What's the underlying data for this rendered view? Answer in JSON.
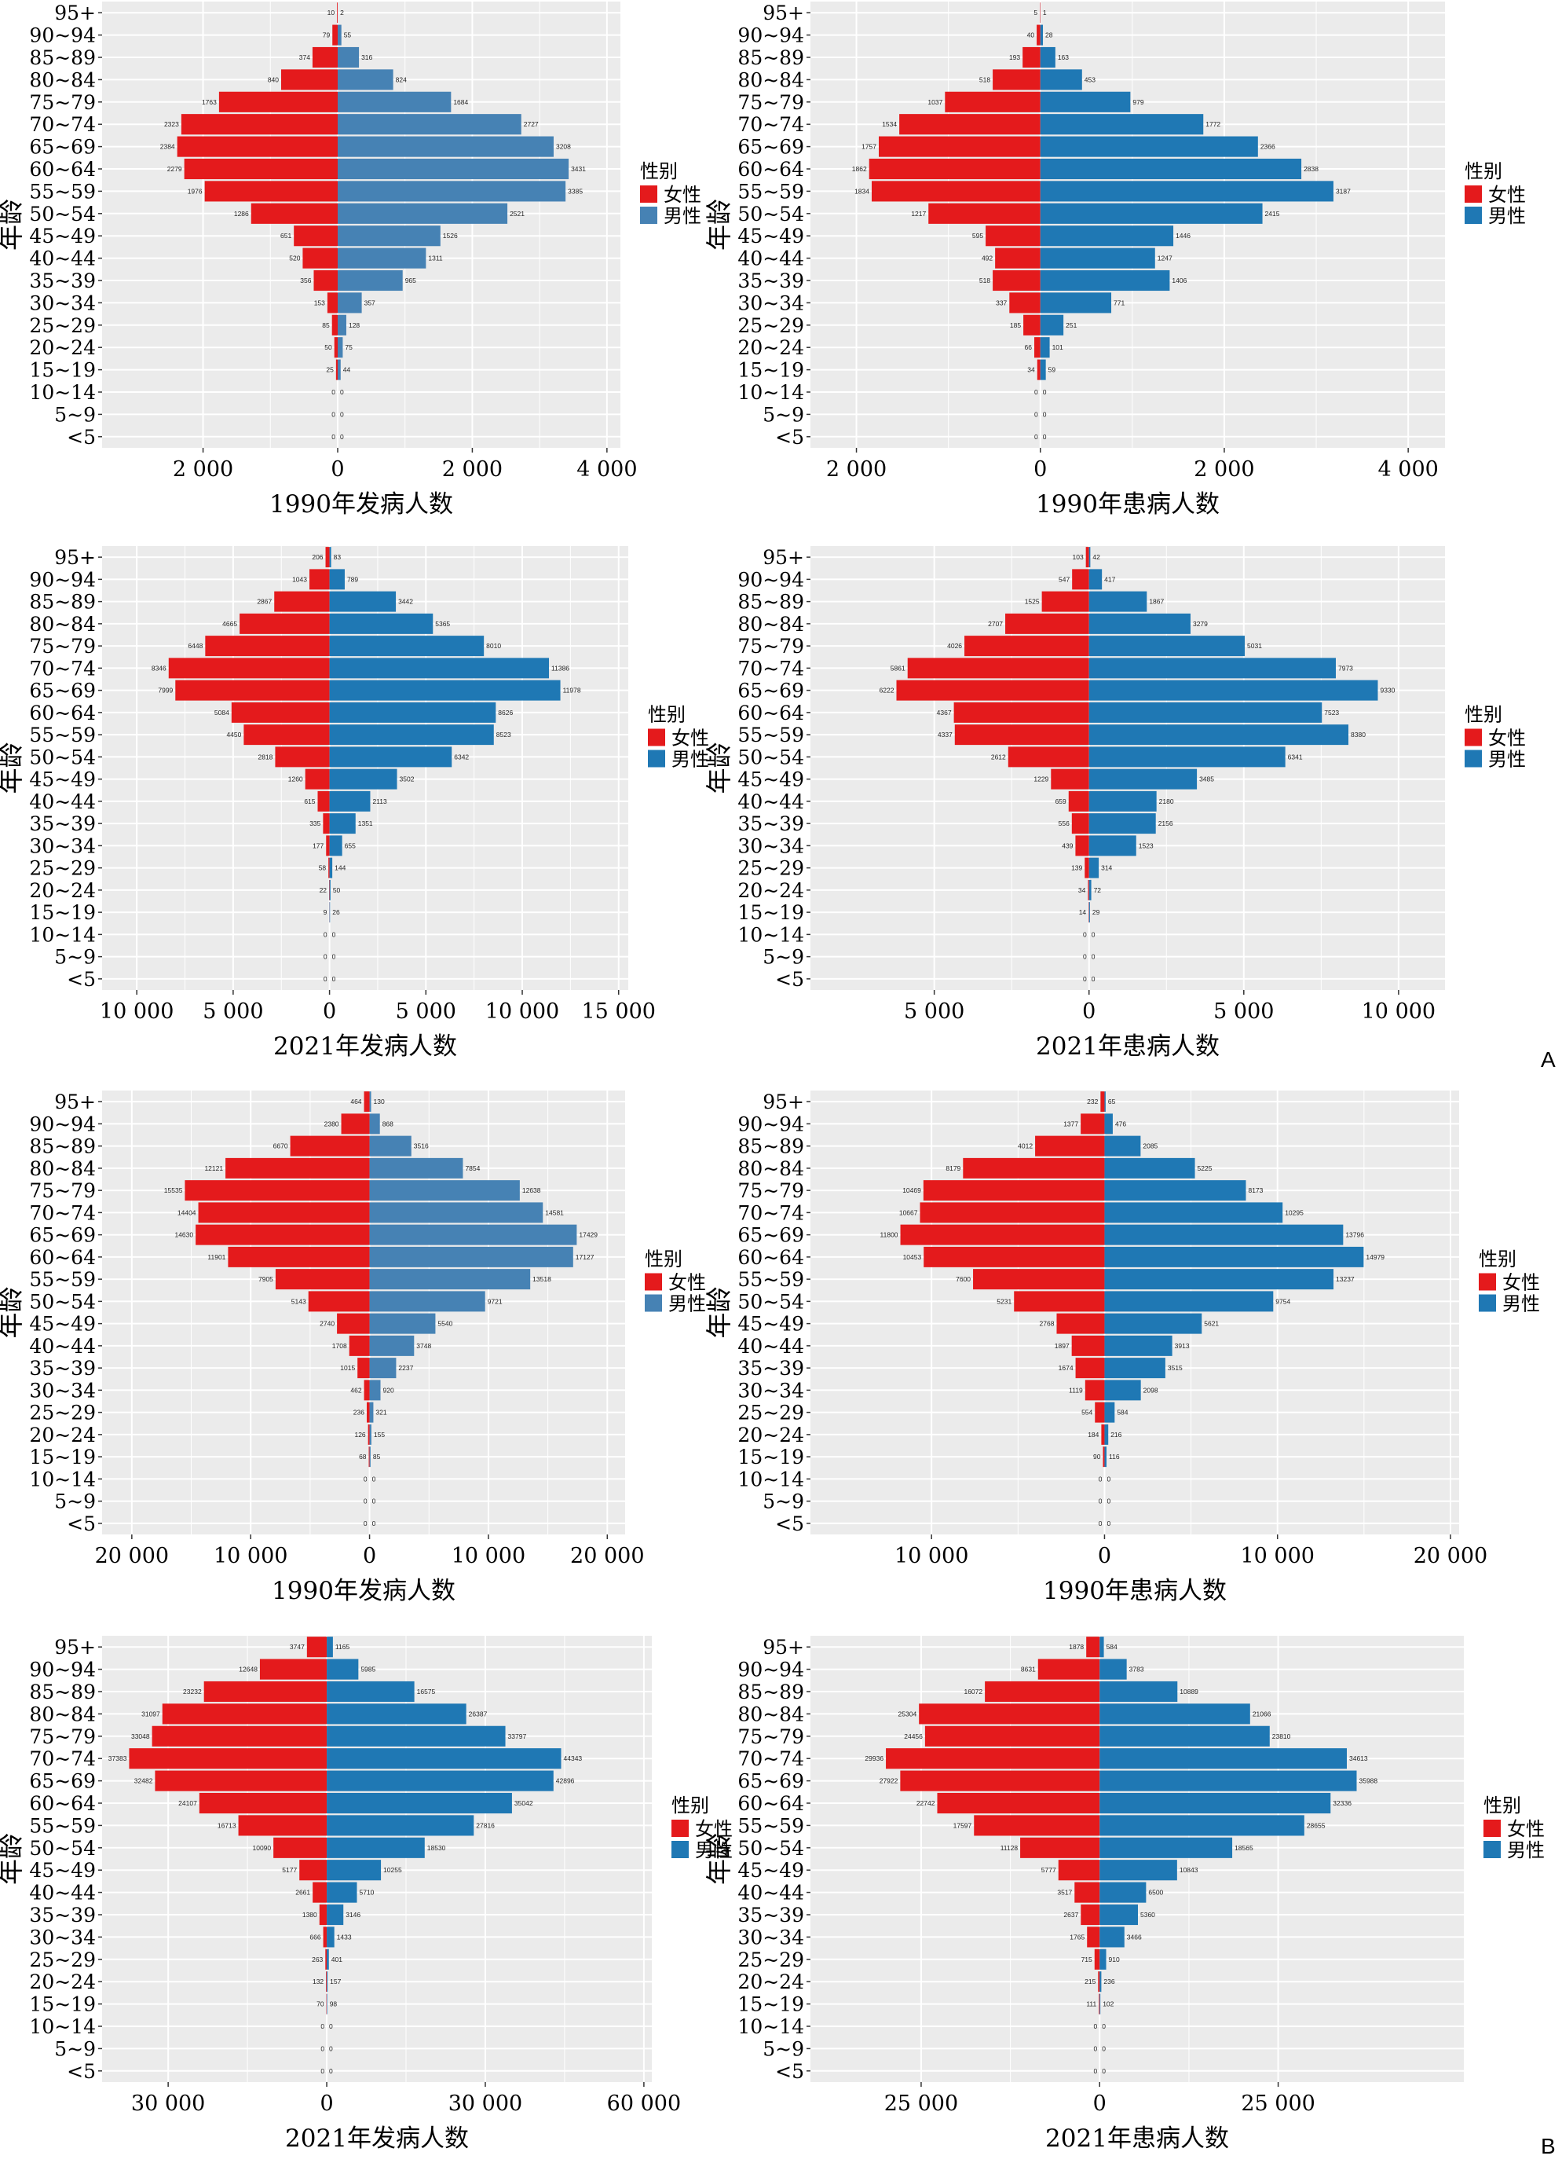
{
  "figure": {
    "panel_labels": [
      "A",
      "B"
    ],
    "legend_title": "性别",
    "legend_female": "女性",
    "legend_male": "男性",
    "y_axis_label": "年龄",
    "female_color": "#E41A1C",
    "male_color_steel": "#4682B4",
    "male_color_blue": "#1F78B4",
    "plot_bg": "#EBEBEB",
    "grid_color": "#FFFFFF"
  },
  "chart_data": [
    {
      "type": "bar",
      "subtype": "population-pyramid",
      "xlabel": "1990年发病人数",
      "ylabel": "年龄",
      "categories": [
        "95+",
        "90~94",
        "85~89",
        "80~84",
        "75~79",
        "70~74",
        "65~69",
        "60~64",
        "55~59",
        "50~54",
        "45~49",
        "40~44",
        "35~39",
        "30~34",
        "25~29",
        "20~24",
        "15~19",
        "10~14",
        "5~9",
        "<5"
      ],
      "series": [
        {
          "name": "女性",
          "values": [
            10,
            79,
            374,
            840,
            1763,
            2323,
            2384,
            2279,
            1976,
            1286,
            651,
            520,
            356,
            153,
            85,
            50,
            25,
            0,
            0,
            0
          ]
        },
        {
          "name": "男性",
          "values": [
            2,
            55,
            316,
            824,
            1684,
            2727,
            3208,
            3431,
            3385,
            2521,
            1526,
            1311,
            965,
            357,
            128,
            75,
            44,
            0,
            0,
            0
          ]
        }
      ],
      "xlim": [
        -3500,
        4200
      ],
      "ticks": [
        -2000,
        0,
        2000,
        4000
      ],
      "tick_labels": [
        "2 000",
        "0",
        "2 000",
        "4 000"
      ],
      "male_color": "#4682B4"
    },
    {
      "type": "bar",
      "subtype": "population-pyramid",
      "xlabel": "1990年患病人数",
      "ylabel": "年龄",
      "categories": [
        "95+",
        "90~94",
        "85~89",
        "80~84",
        "75~79",
        "70~74",
        "65~69",
        "60~64",
        "55~59",
        "50~54",
        "45~49",
        "40~44",
        "35~39",
        "30~34",
        "25~29",
        "20~24",
        "15~19",
        "10~14",
        "5~9",
        "<5"
      ],
      "series": [
        {
          "name": "女性",
          "values": [
            5,
            40,
            193,
            518,
            1037,
            1534,
            1757,
            1862,
            1834,
            1217,
            595,
            492,
            518,
            337,
            185,
            66,
            34,
            0,
            0,
            0
          ]
        },
        {
          "name": "男性",
          "values": [
            1,
            28,
            163,
            453,
            979,
            1772,
            2366,
            2838,
            3187,
            2415,
            1446,
            1247,
            1406,
            771,
            251,
            101,
            59,
            0,
            0,
            0
          ]
        }
      ],
      "xlim": [
        -2500,
        4400
      ],
      "ticks": [
        -2000,
        0,
        2000,
        4000
      ],
      "tick_labels": [
        "2 000",
        "0",
        "2 000",
        "4 000"
      ],
      "male_color": "#1F78B4"
    },
    {
      "type": "bar",
      "subtype": "population-pyramid",
      "xlabel": "2021年发病人数",
      "ylabel": "年龄",
      "categories": [
        "95+",
        "90~94",
        "85~89",
        "80~84",
        "75~79",
        "70~74",
        "65~69",
        "60~64",
        "55~59",
        "50~54",
        "45~49",
        "40~44",
        "35~39",
        "30~34",
        "25~29",
        "20~24",
        "15~19",
        "10~14",
        "5~9",
        "<5"
      ],
      "series": [
        {
          "name": "女性",
          "values": [
            206,
            1043,
            2867,
            4665,
            6448,
            8346,
            7999,
            5084,
            4450,
            2818,
            1260,
            615,
            335,
            177,
            58,
            22,
            9,
            0,
            0,
            0
          ]
        },
        {
          "name": "男性",
          "values": [
            83,
            789,
            3442,
            5365,
            8010,
            11386,
            11978,
            8626,
            8523,
            6342,
            3502,
            2113,
            1351,
            655,
            144,
            50,
            26,
            0,
            0,
            0
          ]
        }
      ],
      "xlim": [
        -11800,
        15500
      ],
      "ticks": [
        -10000,
        -5000,
        0,
        5000,
        10000,
        15000
      ],
      "tick_labels": [
        "10 000",
        "5 000",
        "0",
        "5 000",
        "10 000",
        "15 000"
      ],
      "male_color": "#1F78B4"
    },
    {
      "type": "bar",
      "subtype": "population-pyramid",
      "xlabel": "2021年患病人数",
      "ylabel": "年龄",
      "categories": [
        "95+",
        "90~94",
        "85~89",
        "80~84",
        "75~79",
        "70~74",
        "65~69",
        "60~64",
        "55~59",
        "50~54",
        "45~49",
        "40~44",
        "35~39",
        "30~34",
        "25~29",
        "20~24",
        "15~19",
        "10~14",
        "5~9",
        "<5"
      ],
      "series": [
        {
          "name": "女性",
          "values": [
            103,
            547,
            1525,
            2707,
            4026,
            5861,
            6222,
            4367,
            4337,
            2612,
            1229,
            659,
            556,
            439,
            139,
            34,
            14,
            0,
            0,
            0
          ]
        },
        {
          "name": "男性",
          "values": [
            42,
            417,
            1867,
            3279,
            5031,
            7973,
            9330,
            7523,
            8380,
            6341,
            3485,
            2180,
            2156,
            1523,
            314,
            72,
            29,
            0,
            0,
            0
          ]
        }
      ],
      "xlim": [
        -9000,
        11500
      ],
      "ticks": [
        -5000,
        0,
        5000,
        10000
      ],
      "tick_labels": [
        "5 000",
        "0",
        "5 000",
        "10 000"
      ],
      "male_color": "#1F78B4"
    },
    {
      "type": "bar",
      "subtype": "population-pyramid",
      "xlabel": "1990年发病人数",
      "ylabel": "年龄",
      "categories": [
        "95+",
        "90~94",
        "85~89",
        "80~84",
        "75~79",
        "70~74",
        "65~69",
        "60~64",
        "55~59",
        "50~54",
        "45~49",
        "40~44",
        "35~39",
        "30~34",
        "25~29",
        "20~24",
        "15~19",
        "10~14",
        "5~9",
        "<5"
      ],
      "series": [
        {
          "name": "女性",
          "values": [
            464,
            2380,
            6670,
            12121,
            15535,
            14404,
            14630,
            11901,
            7905,
            5143,
            2740,
            1708,
            1015,
            462,
            236,
            126,
            68,
            0,
            0,
            0
          ]
        },
        {
          "name": "男性",
          "values": [
            130,
            868,
            3516,
            7854,
            12638,
            14581,
            17429,
            17127,
            13518,
            9721,
            5540,
            3748,
            2237,
            920,
            321,
            155,
            85,
            0,
            0,
            0
          ]
        }
      ],
      "xlim": [
        -22500,
        21500
      ],
      "ticks": [
        -20000,
        -10000,
        0,
        10000,
        20000
      ],
      "tick_labels": [
        "20 000",
        "10 000",
        "0",
        "10 000",
        "20 000"
      ],
      "male_color": "#4682B4"
    },
    {
      "type": "bar",
      "subtype": "population-pyramid",
      "xlabel": "1990年患病人数",
      "ylabel": "年龄",
      "categories": [
        "95+",
        "90~94",
        "85~89",
        "80~84",
        "75~79",
        "70~74",
        "65~69",
        "60~64",
        "55~59",
        "50~54",
        "45~49",
        "40~44",
        "35~39",
        "30~34",
        "25~29",
        "20~24",
        "15~19",
        "10~14",
        "5~9",
        "<5"
      ],
      "series": [
        {
          "name": "女性",
          "values": [
            232,
            1377,
            4012,
            8179,
            10469,
            10667,
            11800,
            10453,
            7600,
            5231,
            2768,
            1897,
            1674,
            1119,
            554,
            184,
            90,
            0,
            0,
            0
          ]
        },
        {
          "name": "男性",
          "values": [
            65,
            476,
            2085,
            5225,
            8173,
            10295,
            13796,
            14979,
            13237,
            9754,
            5621,
            3913,
            3515,
            2098,
            584,
            216,
            116,
            0,
            0,
            0
          ]
        }
      ],
      "xlim": [
        -17000,
        20500
      ],
      "ticks": [
        -10000,
        0,
        10000,
        20000
      ],
      "tick_labels": [
        "10 000",
        "0",
        "10 000",
        "20 000"
      ],
      "male_color": "#1F78B4"
    },
    {
      "type": "bar",
      "subtype": "population-pyramid",
      "xlabel": "2021年发病人数",
      "ylabel": "年龄",
      "categories": [
        "95+",
        "90~94",
        "85~89",
        "80~84",
        "75~79",
        "70~74",
        "65~69",
        "60~64",
        "55~59",
        "50~54",
        "45~49",
        "40~44",
        "35~39",
        "30~34",
        "25~29",
        "20~24",
        "15~19",
        "10~14",
        "5~9",
        "<5"
      ],
      "series": [
        {
          "name": "女性",
          "values": [
            3747,
            12648,
            23232,
            31097,
            33048,
            37383,
            32482,
            24107,
            16713,
            10090,
            5177,
            2661,
            1380,
            666,
            263,
            132,
            70,
            0,
            0,
            0
          ]
        },
        {
          "name": "男性",
          "values": [
            1165,
            5985,
            16575,
            26387,
            33797,
            44343,
            42896,
            35042,
            27816,
            18530,
            10255,
            5710,
            3146,
            1433,
            401,
            157,
            98,
            0,
            0,
            0
          ]
        }
      ],
      "xlim": [
        -42500,
        61500
      ],
      "ticks": [
        -30000,
        0,
        30000,
        60000
      ],
      "tick_labels": [
        "30 000",
        "0",
        "30 000",
        "60 000"
      ],
      "male_color": "#1F78B4"
    },
    {
      "type": "bar",
      "subtype": "population-pyramid",
      "xlabel": "2021年患病人数",
      "ylabel": "年龄",
      "categories": [
        "95+",
        "90~94",
        "85~89",
        "80~84",
        "75~79",
        "70~74",
        "65~69",
        "60~64",
        "55~59",
        "50~54",
        "45~49",
        "40~44",
        "35~39",
        "30~34",
        "25~29",
        "20~24",
        "15~19",
        "10~14",
        "5~9",
        "<5"
      ],
      "series": [
        {
          "name": "女性",
          "values": [
            1878,
            8631,
            16072,
            25304,
            24456,
            29936,
            27922,
            22742,
            17597,
            11128,
            5777,
            3517,
            2637,
            1765,
            715,
            215,
            111,
            0,
            0,
            0
          ]
        },
        {
          "name": "男性",
          "values": [
            584,
            3783,
            10889,
            21066,
            23810,
            34613,
            35988,
            32336,
            28655,
            18565,
            10843,
            6500,
            5360,
            3466,
            910,
            236,
            102,
            0,
            0,
            0
          ]
        }
      ],
      "xlim": [
        -40500,
        51000
      ],
      "ticks": [
        -25000,
        0,
        25000
      ],
      "tick_labels": [
        "25 000",
        "0",
        "25 000"
      ],
      "male_color": "#1F78B4"
    }
  ]
}
